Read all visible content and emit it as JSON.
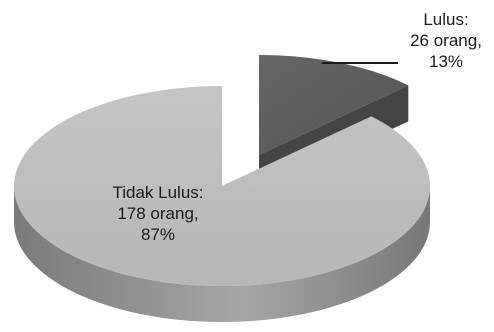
{
  "chart_data": {
    "type": "pie",
    "variant": "3d-exploded",
    "title": "",
    "slices": [
      {
        "key": "tidak_lulus",
        "category": "Tidak Lulus",
        "count": 178,
        "count_text": "178 orang,",
        "percent": 87,
        "percent_text": "87%",
        "label_title": "Tidak Lulus:",
        "color": "#bdbdbd",
        "side_color": "#8c8c8c"
      },
      {
        "key": "lulus",
        "category": "Lulus",
        "count": 26,
        "count_text": "26 orang,",
        "percent": 13,
        "percent_text": "13%",
        "label_title": "Lulus:",
        "color": "#5e5e5e",
        "side_color": "#3a3a3a"
      }
    ],
    "legend": "none",
    "data_labels": "on-slice and leader line"
  }
}
